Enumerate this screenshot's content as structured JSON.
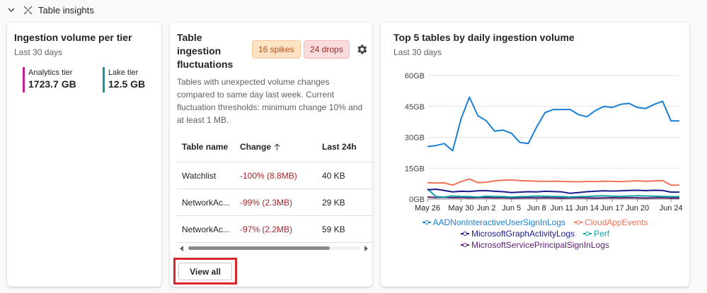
{
  "section": {
    "title": "Table insights"
  },
  "volume_card": {
    "title": "Ingestion volume per tier",
    "subtitle": "Last 30 days",
    "tiers": [
      {
        "label": "Analytics tier",
        "value": "1723.7 GB",
        "color": "#c4218f"
      },
      {
        "label": "Lake tier",
        "value": "12.5 GB",
        "color": "#0f9a9a"
      }
    ]
  },
  "fluct_card": {
    "title": "Table ingestion fluctuations",
    "spikes": "16 spikes",
    "drops": "24 drops",
    "description": "Tables with unexpected volume changes compared to same day last week. Current fluctuation thresholds: minimum change 10% and at least 1 MB.",
    "columns": [
      "Table name",
      "Change",
      "Last 24h"
    ],
    "rows": [
      {
        "name": "Watchlist",
        "change": "-100% (8.8MB)",
        "last24": "40 KB"
      },
      {
        "name": "NetworkAc...",
        "change": "-99% (2.3MB)",
        "last24": "29 KB"
      },
      {
        "name": "NetworkAc...",
        "change": "-97% (2.2MB)",
        "last24": "59 KB"
      }
    ],
    "view_all": "View all"
  },
  "top_card": {
    "title": "Top 5 tables by daily ingestion volume",
    "subtitle": "Last 30 days"
  },
  "chart_data": {
    "type": "line",
    "title": "Top 5 tables by daily ingestion volume",
    "xlabel": "",
    "ylabel": "",
    "y_tick_labels": [
      "0GB",
      "15GB",
      "30GB",
      "45GB",
      "60GB"
    ],
    "ylim": [
      0,
      60
    ],
    "x_tick_labels": [
      "May 26",
      "May 30",
      "Jun 2",
      "Jun 5",
      "Jun 8",
      "Jun 11",
      "Jun 14",
      "Jun 17",
      "Jun 20",
      "Jun 24"
    ],
    "x": [
      "May 26",
      "May 27",
      "May 28",
      "May 29",
      "May 30",
      "May 31",
      "Jun 1",
      "Jun 2",
      "Jun 3",
      "Jun 4",
      "Jun 5",
      "Jun 6",
      "Jun 7",
      "Jun 8",
      "Jun 9",
      "Jun 10",
      "Jun 11",
      "Jun 12",
      "Jun 13",
      "Jun 14",
      "Jun 15",
      "Jun 16",
      "Jun 17",
      "Jun 18",
      "Jun 19",
      "Jun 20",
      "Jun 21",
      "Jun 22",
      "Jun 23",
      "Jun 24",
      "Jun 25"
    ],
    "grid": true,
    "legend_position": "bottom",
    "series": [
      {
        "name": "AADNonInteractiveUserSignInLogs",
        "color": "#1b7fd4",
        "values": [
          25.5,
          26,
          27,
          23.5,
          39,
          49.5,
          40.5,
          38,
          33,
          33.5,
          32,
          27.5,
          27,
          35,
          42,
          43.5,
          43.5,
          43.5,
          41,
          40,
          43,
          45,
          44.5,
          46,
          46.5,
          44.5,
          44,
          46,
          47.5,
          38,
          38
        ]
      },
      {
        "name": "CloudAppEvents",
        "color": "#f2735a",
        "values": [
          8,
          7.8,
          7.9,
          6.8,
          8.5,
          9.8,
          8,
          8.2,
          8.8,
          9.2,
          9.3,
          9,
          8.8,
          8.7,
          8.6,
          8.7,
          8.6,
          8.5,
          8.4,
          8.6,
          8.5,
          8.7,
          8.6,
          8.5,
          8.7,
          8.9,
          8.6,
          8.8,
          9,
          6.8,
          6.8
        ]
      },
      {
        "name": "MicrosoftGraphActivityLogs",
        "color": "#1a1a8c",
        "values": [
          4.5,
          4.8,
          4.2,
          3.5,
          3.8,
          3.7,
          4,
          4.1,
          3.8,
          3.6,
          3.2,
          3.4,
          3.6,
          3.5,
          3.8,
          3.7,
          3.5,
          2.8,
          3.2,
          3.6,
          3.8,
          4,
          3.9,
          4,
          4.2,
          4.3,
          4.1,
          4.3,
          4.2,
          3.4,
          3.4
        ]
      },
      {
        "name": "Perf",
        "color": "#0fa3a3",
        "values": [
          5,
          1.2,
          1,
          1.5,
          1.3,
          1.2,
          1,
          1.4,
          1.3,
          1.2,
          1,
          1.2,
          1.3,
          1.5,
          1.4,
          1.3,
          1.2,
          1,
          1.2,
          1.3,
          1.5,
          1.6,
          1.4,
          1.3,
          1.5,
          1.6,
          1.5,
          1.4,
          1.3,
          1.2,
          1.2
        ]
      },
      {
        "name": "MicrosoftServicePrincipalSignInLogs",
        "color": "#5c1d73",
        "values": [
          1,
          0.8,
          0.9,
          0.7,
          0.8,
          0.6,
          0.7,
          0.8,
          0.6,
          0.7,
          0.5,
          0.6,
          0.7,
          0.6,
          0.7,
          0.6,
          0.5,
          0.6,
          0.7,
          0.6,
          0.5,
          0.6,
          0.7,
          0.6,
          0.7,
          0.6,
          0.5,
          0.6,
          0.7,
          0.5,
          0.5
        ]
      }
    ]
  }
}
